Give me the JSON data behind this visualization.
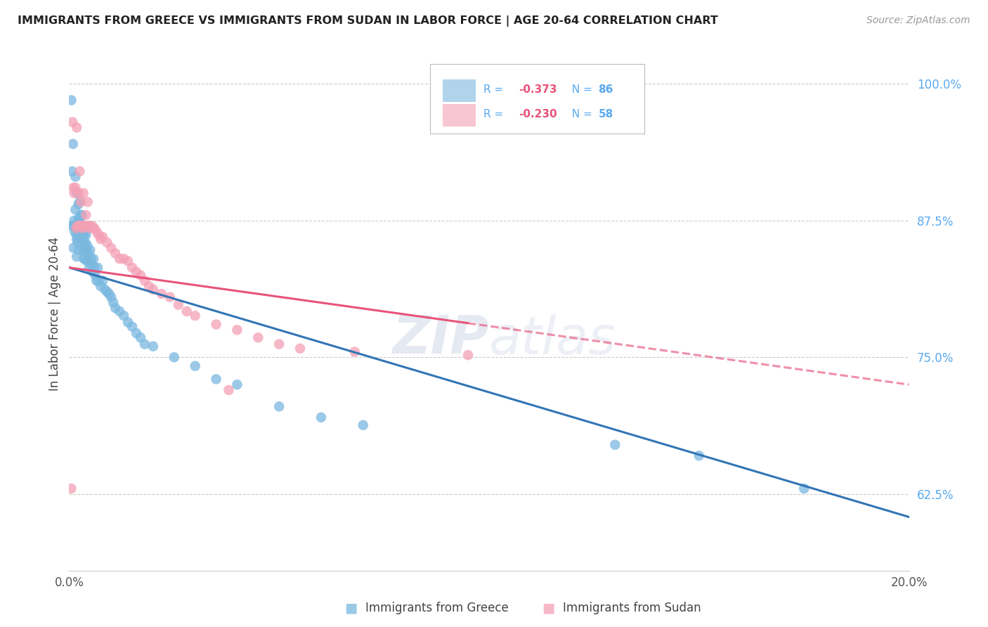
{
  "title": "IMMIGRANTS FROM GREECE VS IMMIGRANTS FROM SUDAN IN LABOR FORCE | AGE 20-64 CORRELATION CHART",
  "source": "Source: ZipAtlas.com",
  "ylabel": "In Labor Force | Age 20-64",
  "xlim": [
    0.0,
    0.2
  ],
  "ylim": [
    0.555,
    1.025
  ],
  "yticks_right": [
    0.625,
    0.75,
    0.875,
    1.0
  ],
  "ytick_labels_right": [
    "62.5%",
    "75.0%",
    "87.5%",
    "100.0%"
  ],
  "greece_color": "#7ab8e0",
  "sudan_color": "#f4a0b5",
  "greece_line_color": "#3275b5",
  "sudan_line_color": "#e8537a",
  "legend_label_greece": "Immigrants from Greece",
  "legend_label_sudan": "Immigrants from Sudan",
  "greece_line_x0": 0.0,
  "greece_line_y0": 0.832,
  "greece_line_x1": 0.2,
  "greece_line_y1": 0.604,
  "sudan_line_x0": 0.0,
  "sudan_line_y0": 0.832,
  "sudan_line_x1_solid": 0.095,
  "sudan_line_y1_solid": 0.747,
  "sudan_line_x1_dash": 0.2,
  "sudan_line_y1_dash": 0.725,
  "greece_scatter_x": [
    0.0005,
    0.0007,
    0.0008,
    0.0009,
    0.001,
    0.001,
    0.0012,
    0.0013,
    0.0015,
    0.0015,
    0.0016,
    0.0017,
    0.0018,
    0.0018,
    0.0019,
    0.002,
    0.002,
    0.0021,
    0.0022,
    0.0022,
    0.0023,
    0.0023,
    0.0024,
    0.0025,
    0.0025,
    0.0026,
    0.0027,
    0.0027,
    0.0028,
    0.0028,
    0.003,
    0.003,
    0.0031,
    0.0032,
    0.0033,
    0.0033,
    0.0034,
    0.0035,
    0.0035,
    0.0036,
    0.0037,
    0.0038,
    0.0039,
    0.004,
    0.0041,
    0.0042,
    0.0043,
    0.0045,
    0.0046,
    0.0048,
    0.005,
    0.0052,
    0.0054,
    0.0056,
    0.0058,
    0.006,
    0.0062,
    0.0065,
    0.0068,
    0.007,
    0.0075,
    0.008,
    0.0085,
    0.009,
    0.0095,
    0.01,
    0.0105,
    0.011,
    0.012,
    0.013,
    0.014,
    0.015,
    0.016,
    0.017,
    0.018,
    0.02,
    0.025,
    0.03,
    0.035,
    0.04,
    0.05,
    0.06,
    0.07,
    0.13,
    0.15,
    0.175
  ],
  "greece_scatter_y": [
    0.985,
    0.92,
    0.87,
    0.945,
    0.87,
    0.85,
    0.875,
    0.865,
    0.915,
    0.885,
    0.87,
    0.862,
    0.858,
    0.842,
    0.9,
    0.87,
    0.855,
    0.868,
    0.89,
    0.875,
    0.862,
    0.848,
    0.878,
    0.892,
    0.875,
    0.87,
    0.862,
    0.858,
    0.88,
    0.865,
    0.88,
    0.865,
    0.855,
    0.87,
    0.862,
    0.848,
    0.87,
    0.855,
    0.84,
    0.862,
    0.848,
    0.84,
    0.855,
    0.862,
    0.848,
    0.838,
    0.852,
    0.868,
    0.845,
    0.832,
    0.848,
    0.84,
    0.835,
    0.828,
    0.84,
    0.832,
    0.825,
    0.82,
    0.832,
    0.82,
    0.815,
    0.82,
    0.812,
    0.81,
    0.808,
    0.805,
    0.8,
    0.795,
    0.792,
    0.788,
    0.782,
    0.778,
    0.772,
    0.768,
    0.762,
    0.76,
    0.75,
    0.742,
    0.73,
    0.725,
    0.705,
    0.695,
    0.688,
    0.67,
    0.66,
    0.63
  ],
  "sudan_scatter_x": [
    0.0005,
    0.0008,
    0.001,
    0.0012,
    0.0015,
    0.0017,
    0.0018,
    0.002,
    0.0022,
    0.0023,
    0.0024,
    0.0025,
    0.0026,
    0.0028,
    0.0029,
    0.003,
    0.0032,
    0.0034,
    0.0035,
    0.0036,
    0.0038,
    0.004,
    0.0042,
    0.0044,
    0.0046,
    0.0048,
    0.005,
    0.0055,
    0.006,
    0.0065,
    0.007,
    0.0075,
    0.008,
    0.009,
    0.01,
    0.011,
    0.012,
    0.013,
    0.014,
    0.015,
    0.016,
    0.017,
    0.018,
    0.019,
    0.02,
    0.022,
    0.024,
    0.026,
    0.028,
    0.03,
    0.035,
    0.038,
    0.04,
    0.045,
    0.05,
    0.055,
    0.068,
    0.095
  ],
  "sudan_scatter_y": [
    0.63,
    0.965,
    0.905,
    0.9,
    0.905,
    0.868,
    0.96,
    0.87,
    0.87,
    0.9,
    0.87,
    0.92,
    0.87,
    0.892,
    0.87,
    0.87,
    0.868,
    0.9,
    0.87,
    0.87,
    0.87,
    0.88,
    0.87,
    0.892,
    0.87,
    0.87,
    0.868,
    0.87,
    0.868,
    0.865,
    0.862,
    0.858,
    0.86,
    0.855,
    0.85,
    0.845,
    0.84,
    0.84,
    0.838,
    0.832,
    0.828,
    0.825,
    0.82,
    0.815,
    0.812,
    0.808,
    0.805,
    0.798,
    0.792,
    0.788,
    0.78,
    0.72,
    0.775,
    0.768,
    0.762,
    0.758,
    0.755,
    0.752
  ]
}
